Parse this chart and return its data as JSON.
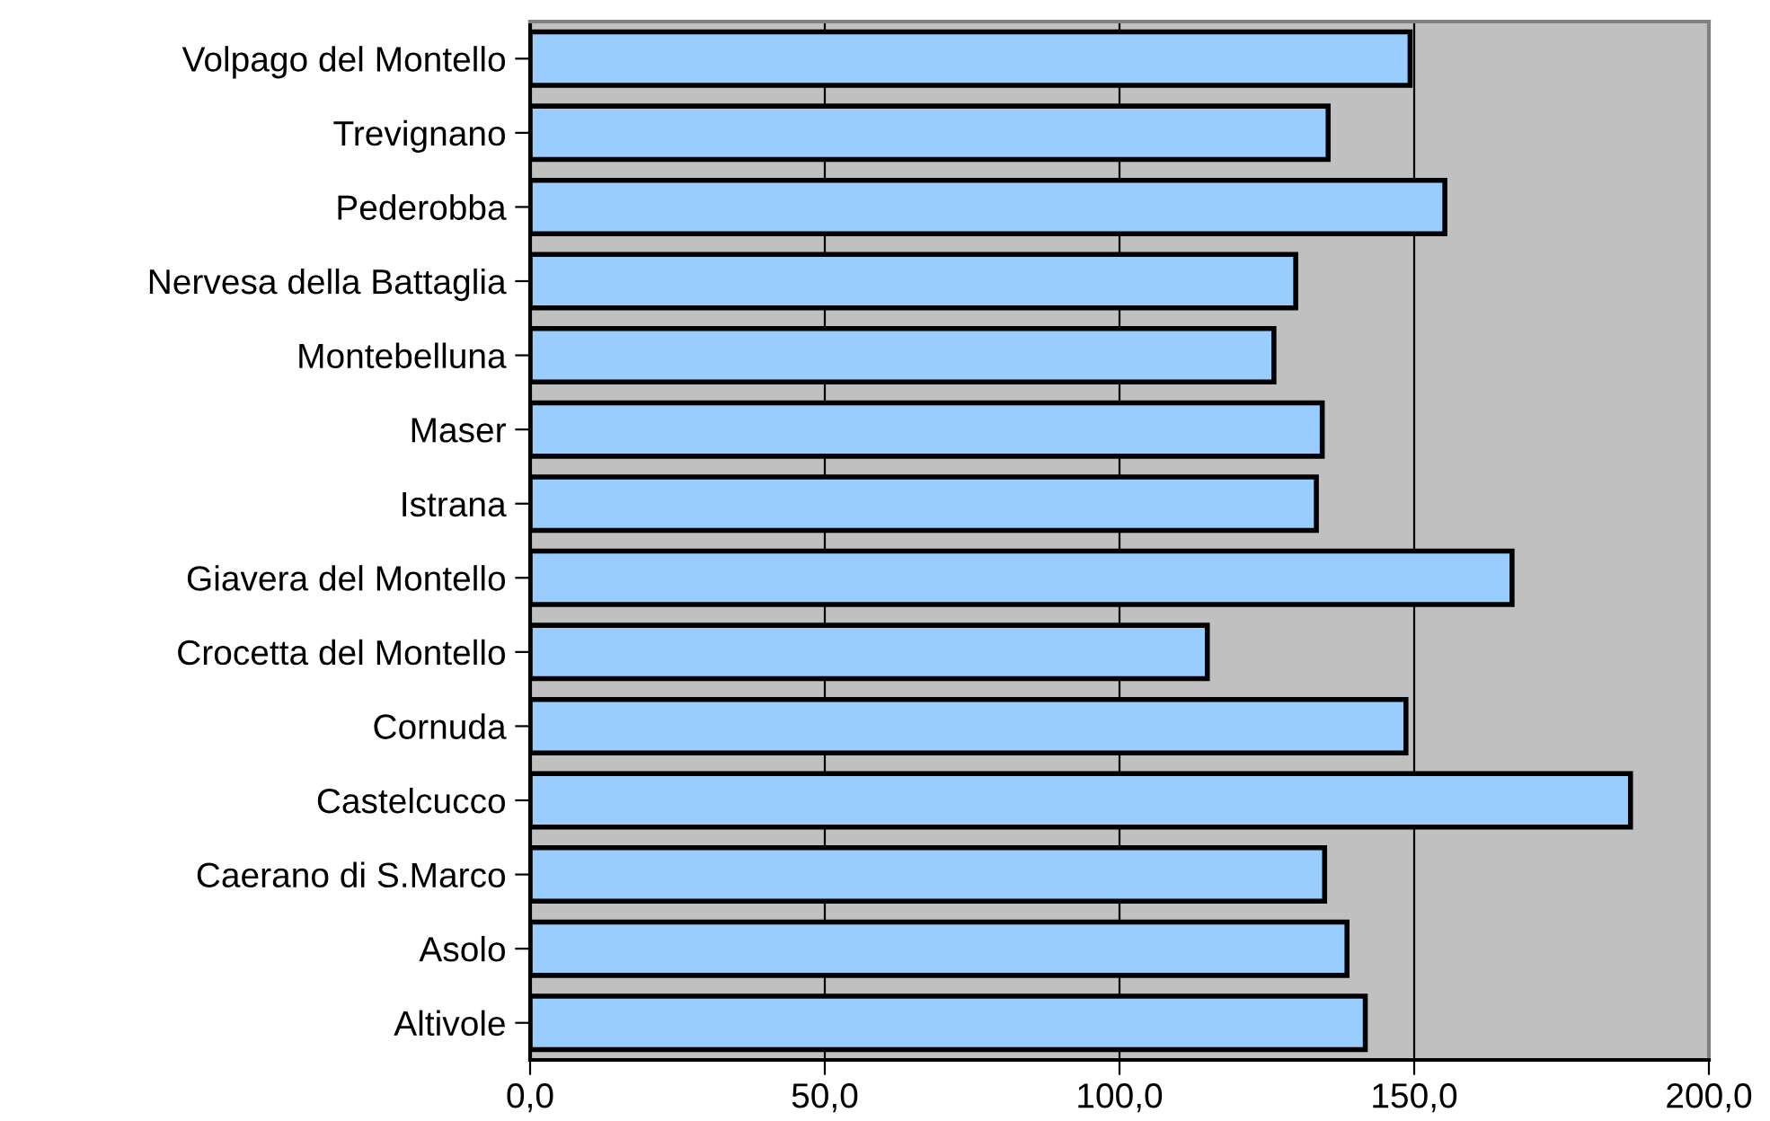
{
  "chart_data": {
    "type": "bar",
    "orientation": "horizontal",
    "categories": [
      "Volpago del Montello",
      "Trevignano",
      "Pederobba",
      "Nervesa della Battaglia",
      "Montebelluna",
      "Maser",
      "Istrana",
      "Giavera del Montello",
      "Crocetta del Montello",
      "Cornuda",
      "Castelcucco",
      "Caerano di S.Marco",
      "Asolo",
      "Altivole"
    ],
    "values": [
      149.3,
      135.4,
      155.2,
      129.9,
      126.2,
      134.4,
      133.4,
      166.6,
      114.9,
      148.6,
      186.7,
      134.8,
      138.6,
      141.7
    ],
    "color": "#99ccff",
    "xlim": [
      0,
      200
    ],
    "xticks": [
      {
        "value": 0,
        "label": "0,0"
      },
      {
        "value": 50,
        "label": "50,0"
      },
      {
        "value": 100,
        "label": "100,0"
      },
      {
        "value": 150,
        "label": "150,0"
      },
      {
        "value": 200,
        "label": "200,0"
      }
    ],
    "grid": "x"
  }
}
